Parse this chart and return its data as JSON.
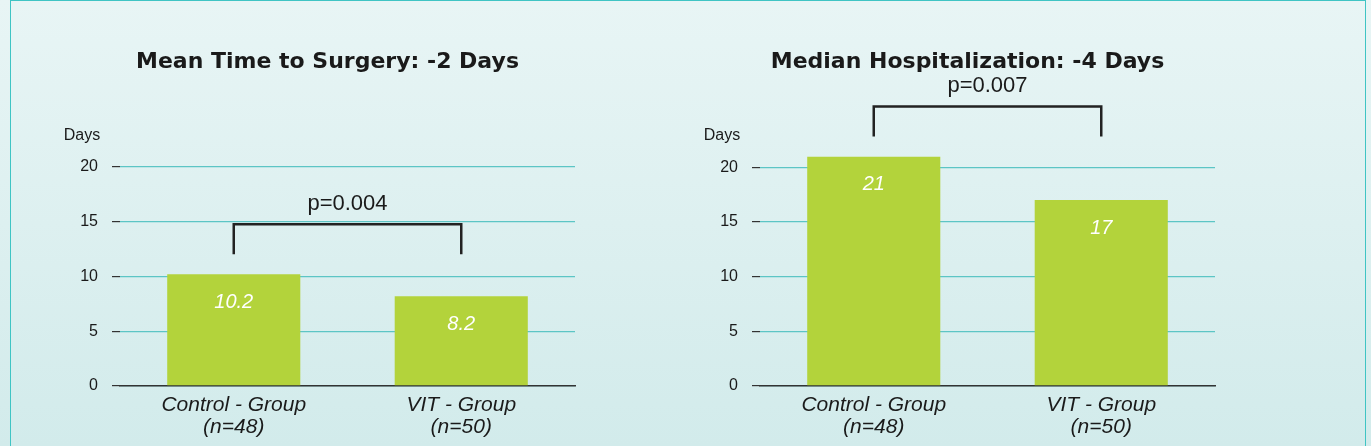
{
  "chart_data": [
    {
      "type": "bar",
      "title": "Mean Time to Surgery: -2 Days",
      "ylabel": "Days",
      "categories": [
        "Control - Group (n=48)",
        "VIT - Group (n=50)"
      ],
      "values": [
        10.2,
        8.2
      ],
      "color": "#b3d33b",
      "ylim": [
        0,
        20
      ],
      "yticks": [
        0,
        5,
        10,
        15,
        20
      ],
      "grid": "y",
      "data_labels": true,
      "annotations": [
        "p=0.004"
      ]
    },
    {
      "type": "bar",
      "title": "Median Hospitalization: -4 Days",
      "ylabel": "Days",
      "categories": [
        "Control - Group (n=48)",
        "VIT - Group (n=50)"
      ],
      "values": [
        21,
        17
      ],
      "color": "#b3d33b",
      "ylim": [
        0,
        21
      ],
      "yticks": [
        0,
        5,
        10,
        15,
        20
      ],
      "grid": "y",
      "data_labels": true,
      "annotations": [
        "p=0.007"
      ]
    }
  ]
}
